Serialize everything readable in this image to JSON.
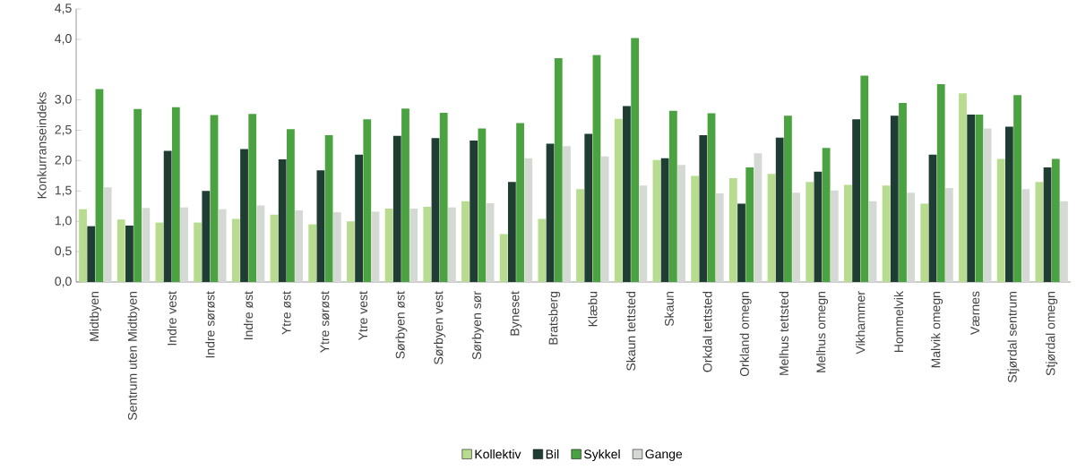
{
  "chart_data": {
    "type": "bar",
    "ylabel": "Konkurranseindeks",
    "categories": [
      "Midtbyen",
      "Sentrum uten Midtbyen",
      "Indre vest",
      "Indre sørøst",
      "Indre øst",
      "Ytre øst",
      "Ytre sørøst",
      "Ytre vest",
      "Sørbyen øst",
      "Sørbyen vest",
      "Sørbyen sør",
      "Byneset",
      "Bratsberg",
      "Klæbu",
      "Skaun tettsted",
      "Skaun",
      "Orkdal tettsted",
      "Orkland omegn",
      "Melhus tettsted",
      "Melhus omegn",
      "Vikhammer",
      "Hommelvik",
      "Malvik omegn",
      "Værnes",
      "Stjørdal sentrum",
      "Stjørdal omegn"
    ],
    "series": [
      {
        "name": "Kollektiv",
        "color": "#b8dc8f",
        "values": [
          1.2,
          1.03,
          0.98,
          0.98,
          1.04,
          1.11,
          0.95,
          1.0,
          1.21,
          1.24,
          1.33,
          0.79,
          1.04,
          1.53,
          2.69,
          2.01,
          1.75,
          1.71,
          1.78,
          1.65,
          1.6,
          1.59,
          1.29,
          3.11,
          2.03,
          1.65
        ]
      },
      {
        "name": "Bil",
        "color": "#1f3d33",
        "values": [
          0.92,
          0.93,
          2.16,
          1.5,
          2.19,
          2.02,
          1.84,
          2.1,
          2.41,
          2.37,
          2.33,
          1.65,
          2.28,
          2.44,
          2.9,
          2.04,
          2.42,
          1.29,
          2.38,
          1.82,
          2.68,
          2.74,
          2.1,
          2.76,
          2.56,
          1.89
        ]
      },
      {
        "name": "Sykkel",
        "color": "#4aa340",
        "values": [
          3.18,
          2.85,
          2.88,
          2.75,
          2.77,
          2.52,
          2.42,
          2.68,
          2.86,
          2.79,
          2.53,
          2.62,
          3.69,
          3.74,
          4.02,
          2.82,
          2.78,
          1.89,
          2.74,
          2.21,
          3.4,
          2.95,
          3.26,
          2.76,
          3.08,
          2.03
        ]
      },
      {
        "name": "Gange",
        "color": "#d5d9d4",
        "values": [
          1.56,
          1.22,
          1.23,
          1.2,
          1.26,
          1.18,
          1.15,
          1.16,
          1.21,
          1.23,
          1.3,
          2.04,
          2.24,
          2.07,
          1.59,
          1.93,
          1.46,
          2.12,
          1.47,
          1.51,
          1.33,
          1.47,
          1.55,
          2.53,
          1.53,
          1.33
        ]
      }
    ],
    "ylim": [
      0,
      4.5
    ],
    "yticks": [
      {
        "value": 0,
        "label": "0,0"
      },
      {
        "value": 0.5,
        "label": "0,5"
      },
      {
        "value": 1,
        "label": "1,0"
      },
      {
        "value": 1.5,
        "label": "1,5"
      },
      {
        "value": 2,
        "label": "2,0"
      },
      {
        "value": 2.5,
        "label": "2,5"
      },
      {
        "value": 3,
        "label": "3,0"
      },
      {
        "value": 4,
        "label": "4,0"
      },
      {
        "value": 4.5,
        "label": "4,5"
      }
    ],
    "legend": "bottom",
    "grid": false
  }
}
